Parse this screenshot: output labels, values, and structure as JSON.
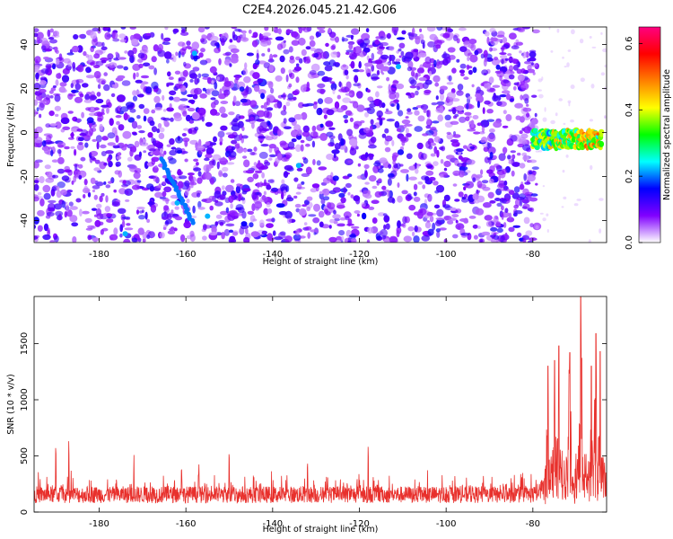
{
  "title": "C2E4.2026.045.21.42.G06",
  "chart_data": [
    {
      "type": "heatmap",
      "xlabel": "Height of straight line (km)",
      "ylabel": "Frequency (Hz)",
      "xlim": [
        -195,
        -63
      ],
      "ylim": [
        -50,
        48
      ],
      "xticks": [
        -180,
        -160,
        -140,
        -120,
        -100,
        -80
      ],
      "xtick_labels": [
        "-180",
        "-160",
        "-140",
        "-120",
        "-100",
        "-80"
      ],
      "yticks": [
        -40,
        -20,
        0,
        20,
        40
      ],
      "ytick_labels": [
        "-40",
        "-20",
        "0",
        "20",
        "40"
      ],
      "noise_extent_km": [
        -195,
        -79
      ],
      "signal_band": {
        "x_range_km": [
          -80,
          -64
        ],
        "freq_center_hz": -3,
        "freq_halfwidth_hz": 4
      },
      "colorbar": {
        "label": "Normalized spectral amplitude",
        "range": [
          0.0,
          0.65
        ],
        "ticks": [
          0.0,
          0.2,
          0.4,
          0.6
        ],
        "tick_labels": [
          "0.0",
          "0.2",
          "0.4",
          "0.6"
        ],
        "colors": [
          "#ffffff",
          "#8000ff",
          "#0000ff",
          "#00ffff",
          "#00ff00",
          "#ffff00",
          "#ff8000",
          "#ff0000",
          "#ff0080"
        ]
      }
    },
    {
      "type": "line",
      "color": "#e8302c",
      "xlabel": "Height of straight line (km)",
      "ylabel": "SNR (10 * v/v)",
      "xlim": [
        -195,
        -63
      ],
      "ylim": [
        0,
        1920
      ],
      "xticks": [
        -180,
        -160,
        -140,
        -120,
        -100,
        -80
      ],
      "xtick_labels": [
        "-180",
        "-160",
        "-140",
        "-120",
        "-100",
        "-80"
      ],
      "yticks": [
        0,
        500,
        1000,
        1500
      ],
      "ytick_labels": [
        "0",
        "500",
        "1000",
        "1500"
      ],
      "noise_floor": 80,
      "noise_typical": 180,
      "noise_spikes": [
        -190,
        -187,
        -172,
        -161,
        -157,
        -150,
        -132,
        -118
      ],
      "rise_start_km": -79,
      "peaks": [
        {
          "x": -76.5,
          "y": 1300
        },
        {
          "x": -75,
          "y": 1350
        },
        {
          "x": -74,
          "y": 1480
        },
        {
          "x": -71.5,
          "y": 1420
        },
        {
          "x": -69,
          "y": 1920
        },
        {
          "x": -66.5,
          "y": 1300
        },
        {
          "x": -65.5,
          "y": 1590
        },
        {
          "x": -64.5,
          "y": 1430
        }
      ]
    }
  ]
}
